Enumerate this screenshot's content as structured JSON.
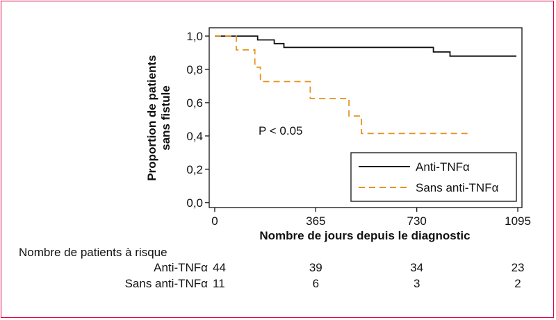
{
  "chart_data": {
    "type": "line",
    "xlabel": "Nombre de jours depuis le diagnostic",
    "ylabel_line1": "Proportion de patients",
    "ylabel_line2": "sans fistule",
    "xlim": [
      -20,
      1110
    ],
    "ylim": [
      -0.03,
      1.05
    ],
    "x_ticks": [
      {
        "value": 0,
        "label": "0"
      },
      {
        "value": 365,
        "label": "365"
      },
      {
        "value": 730,
        "label": "730"
      },
      {
        "value": 1095,
        "label": "1095"
      }
    ],
    "y_ticks": [
      {
        "value": 0.0,
        "label": "0,0"
      },
      {
        "value": 0.2,
        "label": "0,2"
      },
      {
        "value": 0.4,
        "label": "0,4"
      },
      {
        "value": 0.6,
        "label": "0,6"
      },
      {
        "value": 0.8,
        "label": "0,8"
      },
      {
        "value": 1.0,
        "label": "1,0"
      }
    ],
    "grid": false,
    "legend_position": "bottom-right",
    "annotation": "P < 0.05",
    "series": [
      {
        "name": "Anti-TNFα",
        "color": "#111111",
        "style": "solid",
        "step_points": [
          [
            0,
            1.0
          ],
          [
            52,
            1.0
          ],
          [
            52,
            1.0
          ],
          [
            155,
            1.0
          ],
          [
            155,
            0.977
          ],
          [
            215,
            0.977
          ],
          [
            215,
            0.955
          ],
          [
            250,
            0.955
          ],
          [
            250,
            0.932
          ],
          [
            268,
            0.932
          ],
          [
            268,
            0.932
          ],
          [
            790,
            0.932
          ],
          [
            790,
            0.905
          ],
          [
            850,
            0.905
          ],
          [
            850,
            0.88
          ],
          [
            1090,
            0.88
          ]
        ]
      },
      {
        "name": "Sans anti-TNFα",
        "color": "#e8921e",
        "style": "dashed",
        "step_points": [
          [
            0,
            1.0
          ],
          [
            78,
            1.0
          ],
          [
            78,
            0.917
          ],
          [
            145,
            0.917
          ],
          [
            145,
            0.813
          ],
          [
            165,
            0.813
          ],
          [
            165,
            0.727
          ],
          [
            345,
            0.727
          ],
          [
            345,
            0.625
          ],
          [
            485,
            0.625
          ],
          [
            485,
            0.52
          ],
          [
            530,
            0.52
          ],
          [
            530,
            0.415
          ],
          [
            920,
            0.415
          ]
        ]
      }
    ]
  },
  "risk_table": {
    "title": "Nombre de patients à risque",
    "rows": [
      {
        "label": "Anti-TNFα",
        "values": [
          "44",
          "39",
          "34",
          "23"
        ]
      },
      {
        "label": "Sans anti-TNFα",
        "values": [
          "11",
          "6",
          "3",
          "2"
        ]
      }
    ]
  },
  "colors": {
    "frame": "#e0003c",
    "anti_tnf": "#111111",
    "sans_anti_tnf": "#e8921e"
  }
}
